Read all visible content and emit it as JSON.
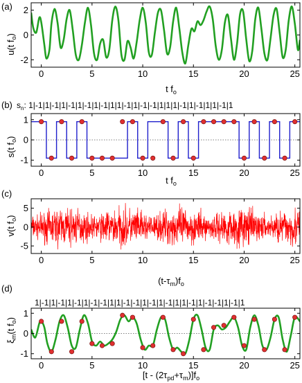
{
  "chart_data": [
    {
      "panel_label": "(a)",
      "type": "line",
      "ylabel": "u(t f",
      "ylabel_sub": "o",
      "ylabel_end": ")",
      "xlabel": "t f",
      "xlabel_sub": "o",
      "xlim": [
        -1,
        25.5
      ],
      "ylim": [
        -2.6,
        2.6
      ],
      "xticks": [
        0,
        5,
        10,
        15,
        20,
        25
      ],
      "yticks": [
        2,
        0,
        -2
      ],
      "ytick_labels": [
        "2",
        "0",
        "-2"
      ],
      "series": [
        {
          "color": "#22a022",
          "x": [
            -1.0,
            -0.8,
            -0.5,
            -0.2,
            0.0,
            0.3,
            0.5,
            0.8,
            1.0,
            1.3,
            1.6,
            1.9,
            2.2,
            2.5,
            2.8,
            3.1,
            3.4,
            3.7,
            4.0,
            4.3,
            4.6,
            4.9,
            5.2,
            5.5,
            5.8,
            6.1,
            6.4,
            6.7,
            7.0,
            7.3,
            7.6,
            7.9,
            8.2,
            8.5,
            8.8,
            9.1,
            9.4,
            9.7,
            10.0,
            10.3,
            10.6,
            10.9,
            11.2,
            11.5,
            11.8,
            12.1,
            12.4,
            12.7,
            13.0,
            13.3,
            13.6,
            13.9,
            14.2,
            14.5,
            14.8,
            15.1,
            15.4,
            15.7,
            16.0,
            16.3,
            16.6,
            16.9,
            17.2,
            17.5,
            17.8,
            18.1,
            18.4,
            18.7,
            19.0,
            19.3,
            19.6,
            19.9,
            20.2,
            20.5,
            20.8,
            21.1,
            21.4,
            21.7,
            22.0,
            22.3,
            22.6,
            22.9,
            23.2,
            23.5,
            23.8,
            24.1,
            24.4,
            24.7,
            25.0,
            25.3,
            25.5
          ],
          "y": [
            1.8,
            0.6,
            0.2,
            1.4,
            1.0,
            -0.8,
            -1.9,
            -1.2,
            0.9,
            2.1,
            1.0,
            -1.0,
            -0.4,
            1.3,
            2.0,
            0.4,
            -1.6,
            -2.0,
            -0.8,
            1.0,
            2.2,
            0.8,
            -1.5,
            -2.0,
            -0.7,
            -0.4,
            -1.8,
            -1.2,
            1.2,
            2.3,
            1.2,
            -1.6,
            -2.0,
            -0.5,
            -1.0,
            -1.9,
            -0.6,
            1.2,
            2.2,
            1.0,
            -1.4,
            -1.6,
            0.2,
            1.8,
            2.0,
            0.4,
            -1.5,
            -1.0,
            1.1,
            2.2,
            0.6,
            -1.4,
            -2.3,
            -0.8,
            0.5,
            0.3,
            1.1,
            0.8,
            1.2,
            1.9,
            2.3,
            1.3,
            -0.9,
            -2.0,
            -1.2,
            1.0,
            1.6,
            -0.3,
            -2.0,
            -0.7,
            1.7,
            1.9,
            -0.3,
            -2.1,
            -1.3,
            1.3,
            2.2,
            0.5,
            -1.5,
            -2.0,
            -0.3,
            1.6,
            2.1,
            0.2,
            -1.8,
            -1.2,
            1.2,
            2.3,
            0.9,
            -1.2,
            -0.4
          ]
        }
      ]
    },
    {
      "panel_label": "(b)",
      "type": "line",
      "sequence_prefix": "s",
      "sequence_prefix_sub": "n",
      "sequence_text": ": 1|-1|1|-1|1|-1|1|-1|1|-1|1|1|-1|1|-1|-1|1|1|1|-1|1|-1|1|1|-1|1",
      "ylabel": "s(t f",
      "ylabel_sub": "o",
      "ylabel_end": ")",
      "xlabel": "t f",
      "xlabel_sub": "o",
      "xlim": [
        -1,
        25.5
      ],
      "ylim": [
        -1.3,
        1.3
      ],
      "xticks": [
        0,
        5,
        10,
        15,
        20,
        25
      ],
      "yticks": [
        1,
        0,
        -1
      ],
      "ytick_labels": [
        "1",
        "0",
        "-1"
      ],
      "reference_line_y": 0,
      "series": [
        {
          "name_hidden": "s",
          "color": "#1f1fcc",
          "step_x": [
            -1,
            0.5,
            1.5,
            2.5,
            3.5,
            4.5,
            5.5,
            8.5,
            9.5,
            10.5,
            12.5,
            13.5,
            14.5,
            15.5,
            16.5,
            19.5,
            20.5,
            21.5,
            22.5,
            23.5,
            24.5,
            25.5
          ],
          "step_y": [
            0.9,
            -0.9,
            0.9,
            -0.9,
            0.9,
            -0.9,
            -0.9,
            0.9,
            -0.9,
            0.9,
            -0.9,
            0.9,
            -0.9,
            0.9,
            0.9,
            -0.9,
            0.9,
            -0.9,
            0.9,
            -0.9,
            0.9,
            0.9
          ]
        }
      ],
      "markers": {
        "color": "#e03030",
        "x": [
          0,
          1,
          2,
          3,
          4,
          5,
          6,
          7,
          8,
          9,
          10,
          11,
          12,
          13,
          14,
          15,
          16,
          17,
          18,
          19,
          20,
          21,
          22,
          23,
          24,
          25
        ],
        "y": [
          0.9,
          -0.9,
          0.9,
          -0.9,
          0.9,
          -0.9,
          -0.9,
          -0.9,
          0.9,
          0.9,
          -0.9,
          -0.9,
          0.9,
          -0.9,
          0.9,
          -0.9,
          0.9,
          0.9,
          0.9,
          0.9,
          -0.9,
          0.9,
          -0.9,
          0.9,
          -0.9,
          0.9
        ]
      }
    },
    {
      "panel_label": "(c)",
      "type": "line",
      "ylabel": "v(t f",
      "ylabel_sub": "o",
      "ylabel_end": ")",
      "xlabel": "(t-τ",
      "xlabel_sub": "m",
      "xlabel_end": ")f",
      "xlabel_sub2": "o",
      "xlim": [
        -1,
        25.5
      ],
      "ylim": [
        -7,
        7.5
      ],
      "xticks": [
        0,
        5,
        10,
        15,
        20,
        25
      ],
      "yticks": [
        5,
        0,
        -5
      ],
      "ytick_labels": [
        "5",
        "0",
        "-5"
      ],
      "series": [
        {
          "color": "#ff0000",
          "noise_amplitude": 4.5,
          "noise_seed": 7
        }
      ]
    },
    {
      "panel_label": "(d)",
      "type": "line",
      "sequence_text": "1|-1|1|-1|1|-1|1|-1|-1|1|1|-1|-1|1|-1|1|-1|1|1|-1|1|-1|-1|1|-1|1",
      "ylabel": "ξ",
      "ylabel_sub": "m",
      "ylabel_end": "(t f",
      "ylabel_sub2": "o",
      "ylabel_end2": ")",
      "xlabel": "[t - (2τ",
      "xlabel_sub": "pd",
      "xlabel_end": "+τ",
      "xlabel_sub2": "m",
      "xlabel_end2": ")]f",
      "xlabel_sub3": "o",
      "xlim": [
        -1,
        25.5
      ],
      "ylim": [
        -1.25,
        1.25
      ],
      "xticks": [
        0,
        5,
        10,
        15,
        20,
        25
      ],
      "yticks": [
        1,
        0,
        -1
      ],
      "ytick_labels": [
        "1",
        "0",
        "-1"
      ],
      "reference_line_y": 0,
      "series": [
        {
          "color": "#22a022",
          "x": [
            -1.0,
            -0.6,
            -0.2,
            0.0,
            0.3,
            0.6,
            1.0,
            1.4,
            1.8,
            2.2,
            2.6,
            3.0,
            3.4,
            3.8,
            4.2,
            4.6,
            5.0,
            5.4,
            5.8,
            6.2,
            6.6,
            7.0,
            7.4,
            7.8,
            8.2,
            8.6,
            9.0,
            9.4,
            9.8,
            10.2,
            10.6,
            11.0,
            11.4,
            11.8,
            12.2,
            12.6,
            13.0,
            13.4,
            13.8,
            14.2,
            14.6,
            15.0,
            15.4,
            15.8,
            16.2,
            16.6,
            17.0,
            17.4,
            17.8,
            18.2,
            18.6,
            19.0,
            19.4,
            19.8,
            20.2,
            20.6,
            21.0,
            21.4,
            21.8,
            22.2,
            22.6,
            23.0,
            23.4,
            23.8,
            24.2,
            24.6,
            25.0,
            25.5
          ],
          "y": [
            0.2,
            -0.2,
            0.5,
            0.6,
            0.3,
            -0.5,
            -0.9,
            -0.3,
            0.6,
            0.9,
            0.3,
            -0.6,
            -0.7,
            0.2,
            0.9,
            0.5,
            -0.4,
            -0.6,
            -0.4,
            -0.6,
            -0.5,
            -0.3,
            0.1,
            0.7,
            0.9,
            0.6,
            0.8,
            0.5,
            -0.3,
            -0.8,
            -0.6,
            -0.6,
            0.2,
            0.8,
            0.7,
            -0.2,
            -0.8,
            -0.7,
            -0.9,
            -1.0,
            -0.3,
            0.7,
            0.9,
            0.2,
            -0.7,
            -0.8,
            0.2,
            0.4,
            0.2,
            0.3,
            0.6,
            0.8,
            0.3,
            -0.6,
            -0.8,
            0.3,
            0.9,
            0.4,
            -0.6,
            -0.8,
            -0.2,
            0.7,
            0.8,
            -0.3,
            -0.9,
            -0.1,
            0.8,
            0.6
          ]
        }
      ],
      "markers": {
        "color": "#e03030",
        "x": [
          0,
          1,
          2,
          3,
          4,
          5,
          6,
          7,
          8,
          9,
          10,
          11,
          12,
          13,
          14,
          15,
          16,
          17,
          18,
          19,
          20,
          21,
          22,
          23,
          24,
          25
        ],
        "y": [
          0.6,
          -0.9,
          0.6,
          -0.9,
          0.6,
          -0.5,
          -0.6,
          -0.5,
          0.9,
          0.8,
          -0.7,
          -0.6,
          0.8,
          -0.8,
          -1.0,
          0.7,
          -0.8,
          0.3,
          0.4,
          0.8,
          -0.6,
          0.7,
          -0.8,
          0.7,
          -0.8,
          0.8
        ]
      }
    }
  ]
}
